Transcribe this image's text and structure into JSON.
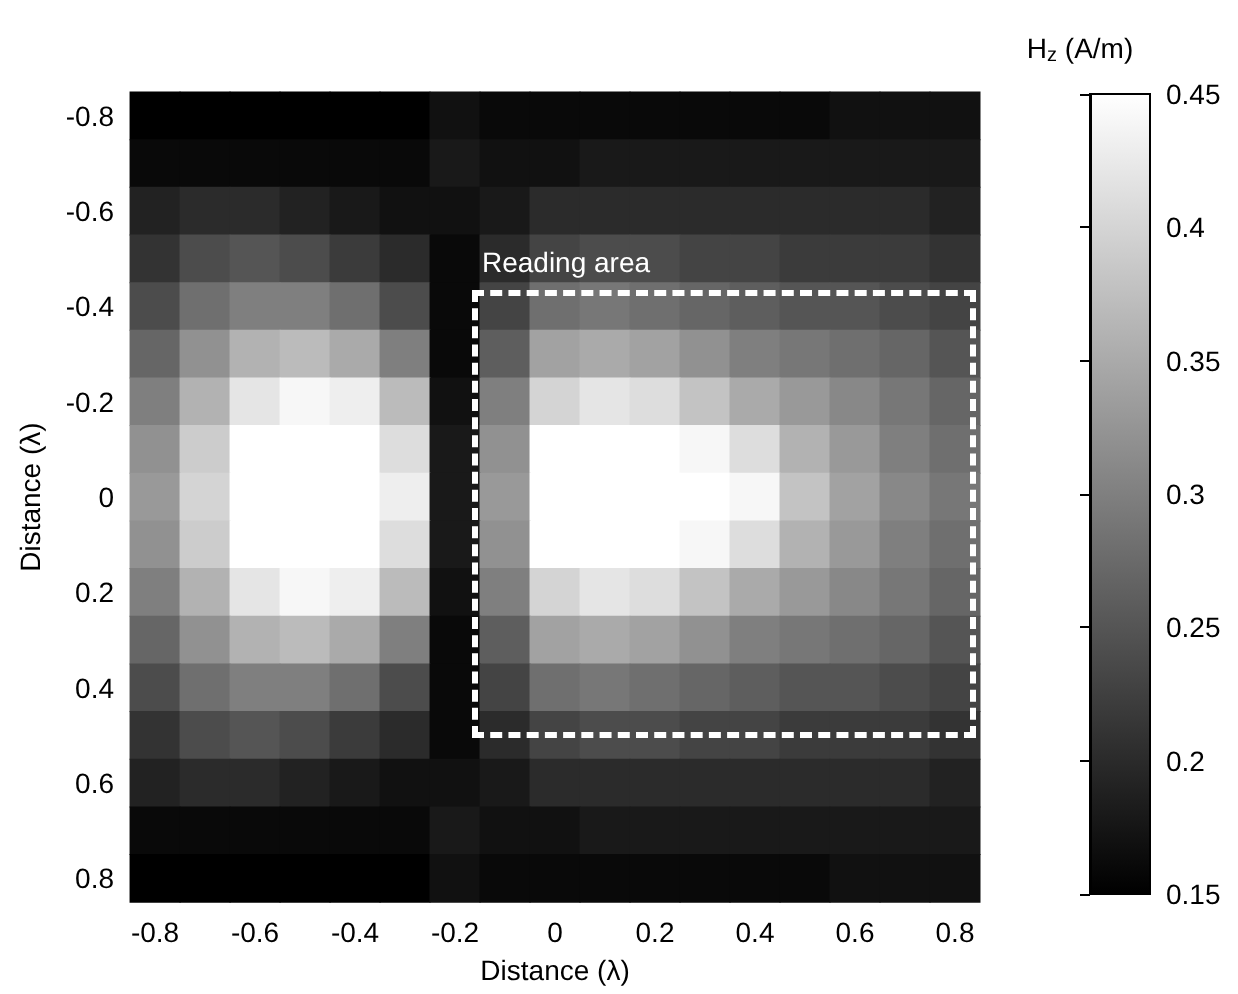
{
  "chart_data": {
    "type": "heatmap",
    "xlabel": "Distance (λ)",
    "ylabel": "Distance (λ)",
    "clabel": "H$_{z}$ (A/m)",
    "annotations": [
      "Reading area"
    ],
    "categories": [
      "-0.8",
      null,
      "-0.6",
      null,
      "-0.4",
      null,
      "-0.2",
      null,
      "0",
      null,
      "0.2",
      null,
      "0.4",
      null,
      "0.6",
      null,
      "0.8"
    ],
    "y_categories": [
      "-0.8",
      null,
      "-0.6",
      null,
      "-0.4",
      null,
      "-0.2",
      null,
      "0",
      null,
      "0.2",
      null,
      "0.4",
      null,
      "0.6",
      null,
      "0.8"
    ],
    "cells": [
      [
        0.15,
        0.15,
        0.15,
        0.15,
        0.15,
        0.15,
        0.17,
        0.16,
        0.16,
        0.16,
        0.16,
        0.16,
        0.16,
        0.16,
        0.17,
        0.17,
        0.17
      ],
      [
        0.16,
        0.16,
        0.16,
        0.16,
        0.16,
        0.16,
        0.18,
        0.17,
        0.17,
        0.18,
        0.18,
        0.18,
        0.18,
        0.18,
        0.18,
        0.18,
        0.18
      ],
      [
        0.19,
        0.2,
        0.2,
        0.19,
        0.18,
        0.17,
        0.17,
        0.18,
        0.2,
        0.2,
        0.2,
        0.2,
        0.2,
        0.2,
        0.2,
        0.2,
        0.19
      ],
      [
        0.21,
        0.24,
        0.25,
        0.24,
        0.22,
        0.2,
        0.16,
        0.2,
        0.23,
        0.24,
        0.24,
        0.23,
        0.23,
        0.22,
        0.22,
        0.22,
        0.21
      ],
      [
        0.24,
        0.28,
        0.3,
        0.3,
        0.28,
        0.24,
        0.16,
        0.23,
        0.28,
        0.29,
        0.28,
        0.27,
        0.26,
        0.25,
        0.25,
        0.24,
        0.23
      ],
      [
        0.27,
        0.32,
        0.36,
        0.37,
        0.35,
        0.3,
        0.16,
        0.26,
        0.34,
        0.35,
        0.34,
        0.32,
        0.3,
        0.29,
        0.28,
        0.27,
        0.25
      ],
      [
        0.3,
        0.36,
        0.42,
        0.44,
        0.43,
        0.37,
        0.17,
        0.3,
        0.4,
        0.42,
        0.41,
        0.38,
        0.35,
        0.33,
        0.31,
        0.29,
        0.27
      ],
      [
        0.32,
        0.39,
        0.45,
        0.45,
        0.45,
        0.41,
        0.18,
        0.32,
        0.45,
        0.45,
        0.45,
        0.44,
        0.41,
        0.36,
        0.33,
        0.3,
        0.28
      ],
      [
        0.33,
        0.4,
        0.45,
        0.45,
        0.45,
        0.43,
        0.18,
        0.33,
        0.45,
        0.45,
        0.45,
        0.45,
        0.44,
        0.38,
        0.34,
        0.31,
        0.29
      ],
      [
        0.32,
        0.39,
        0.45,
        0.45,
        0.45,
        0.41,
        0.18,
        0.32,
        0.45,
        0.45,
        0.45,
        0.44,
        0.41,
        0.36,
        0.33,
        0.3,
        0.28
      ],
      [
        0.3,
        0.36,
        0.42,
        0.44,
        0.43,
        0.37,
        0.17,
        0.3,
        0.4,
        0.42,
        0.41,
        0.38,
        0.35,
        0.33,
        0.31,
        0.29,
        0.27
      ],
      [
        0.27,
        0.32,
        0.36,
        0.37,
        0.35,
        0.3,
        0.16,
        0.26,
        0.34,
        0.35,
        0.34,
        0.32,
        0.3,
        0.29,
        0.28,
        0.27,
        0.25
      ],
      [
        0.24,
        0.28,
        0.3,
        0.3,
        0.28,
        0.24,
        0.16,
        0.23,
        0.28,
        0.29,
        0.28,
        0.27,
        0.26,
        0.25,
        0.25,
        0.24,
        0.23
      ],
      [
        0.21,
        0.24,
        0.25,
        0.24,
        0.22,
        0.2,
        0.16,
        0.2,
        0.23,
        0.24,
        0.24,
        0.23,
        0.23,
        0.22,
        0.22,
        0.22,
        0.21
      ],
      [
        0.19,
        0.2,
        0.2,
        0.19,
        0.18,
        0.17,
        0.17,
        0.18,
        0.2,
        0.2,
        0.2,
        0.2,
        0.2,
        0.2,
        0.2,
        0.2,
        0.19
      ],
      [
        0.16,
        0.16,
        0.16,
        0.16,
        0.16,
        0.16,
        0.18,
        0.17,
        0.17,
        0.18,
        0.18,
        0.18,
        0.18,
        0.18,
        0.18,
        0.18,
        0.18
      ],
      [
        0.15,
        0.15,
        0.15,
        0.15,
        0.15,
        0.15,
        0.17,
        0.16,
        0.16,
        0.16,
        0.16,
        0.16,
        0.16,
        0.16,
        0.17,
        0.17,
        0.17
      ]
    ],
    "clim": [
      0.15,
      0.45
    ],
    "cticks": [
      0.15,
      0.2,
      0.25,
      0.3,
      0.35,
      0.4,
      0.45
    ]
  }
}
